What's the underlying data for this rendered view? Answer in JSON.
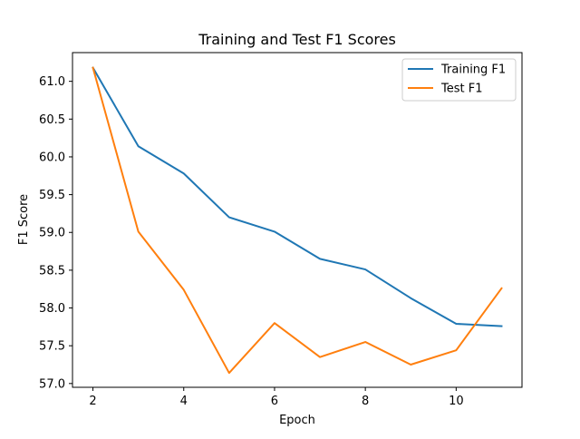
{
  "chart_data": {
    "type": "line",
    "title": "Training and Test F1 Scores",
    "xlabel": "Epoch",
    "ylabel": "F1 Score",
    "x": [
      2,
      3,
      4,
      5,
      6,
      7,
      8,
      9,
      10,
      11
    ],
    "xlim": [
      1.55,
      11.45
    ],
    "ylim": [
      56.95,
      61.38
    ],
    "xticks": [
      2,
      4,
      6,
      8,
      10
    ],
    "yticks": [
      57.0,
      57.5,
      58.0,
      58.5,
      59.0,
      59.5,
      60.0,
      60.5,
      61.0
    ],
    "ytick_labels": [
      "57.0",
      "57.5",
      "58.0",
      "58.5",
      "59.0",
      "59.5",
      "60.0",
      "60.5",
      "61.0"
    ],
    "grid": false,
    "legend_position": "upper right",
    "series": [
      {
        "name": "Training F1",
        "color": "#1f77b4",
        "values": [
          61.18,
          60.14,
          59.78,
          59.2,
          59.01,
          58.65,
          58.51,
          58.13,
          57.79,
          57.76
        ]
      },
      {
        "name": "Test F1",
        "color": "#ff7f0e",
        "values": [
          61.18,
          59.01,
          58.24,
          57.14,
          57.8,
          57.35,
          57.55,
          57.25,
          57.44,
          58.26
        ]
      }
    ]
  }
}
